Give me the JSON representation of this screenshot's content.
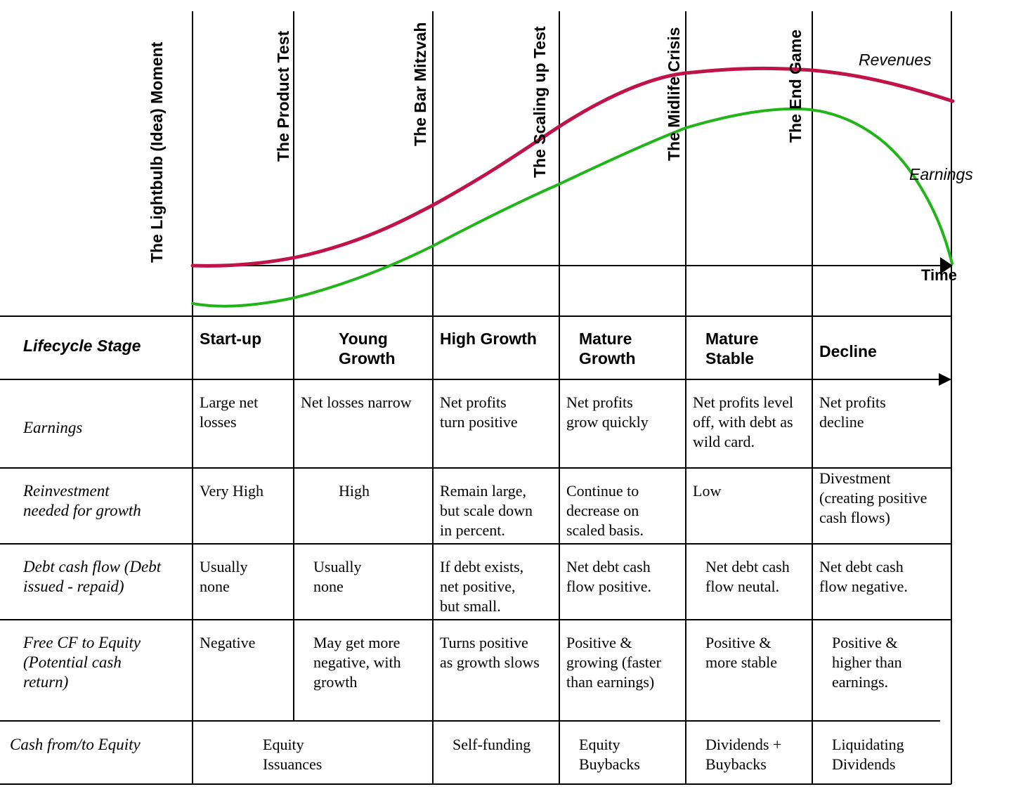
{
  "milestones": [
    "The Lightbulb (Idea) Moment",
    "The Product Test",
    "The Bar Mitzvah",
    "The Scaling up Test",
    "The Midlife Crisis",
    "The End Game"
  ],
  "curves": {
    "revenues": {
      "label": "Revenues",
      "color": "#c0134a"
    },
    "earnings": {
      "label": "Earnings",
      "color": "#22b51a"
    }
  },
  "axis_label": "Time",
  "table": {
    "stage_header": "Lifecycle Stage",
    "stages": [
      [
        "Start-up"
      ],
      [
        "Young",
        "Growth"
      ],
      [
        "High Growth"
      ],
      [
        "Mature",
        "Growth"
      ],
      [
        "Mature",
        "Stable"
      ],
      [
        "Decline"
      ]
    ],
    "rows": [
      {
        "label": [
          "Earnings"
        ],
        "cells": [
          [
            "Large net",
            "losses"
          ],
          [
            "Net losses narrow"
          ],
          [
            "Net profits",
            "turn positive"
          ],
          [
            "Net profits",
            "grow quickly"
          ],
          [
            "Net profits level",
            "off, with debt as",
            "wild card."
          ],
          [
            "Net profits",
            "decline"
          ]
        ]
      },
      {
        "label": [
          "Reinvestment",
          "needed for growth"
        ],
        "cells": [
          [
            "Very High"
          ],
          [
            "High"
          ],
          [
            "Remain large,",
            "but scale down",
            "in percent."
          ],
          [
            "Continue to",
            "decrease on",
            "scaled basis."
          ],
          [
            "Low"
          ],
          [
            "Divestment",
            "(creating positive",
            "cash flows)"
          ]
        ]
      },
      {
        "label": [
          "Debt cash flow (Debt",
          "issued - repaid)"
        ],
        "cells": [
          [
            "Usually",
            "none"
          ],
          [
            "Usually",
            "none"
          ],
          [
            "If debt exists,",
            "net positive,",
            "but small."
          ],
          [
            "Net debt cash",
            "flow positive."
          ],
          [
            "Net debt cash",
            "flow neutal."
          ],
          [
            "Net debt cash",
            "flow negative."
          ]
        ]
      },
      {
        "label": [
          "Free CF to Equity",
          "(Potential cash",
          "return)"
        ],
        "cells": [
          [
            "Negative"
          ],
          [
            "May get more",
            "negative, with",
            "growth"
          ],
          [
            "Turns positive",
            "as growth slows"
          ],
          [
            "Positive &",
            "growing (faster",
            "than earnings)"
          ],
          [
            "Positive &",
            "more stable"
          ],
          [
            "Positive &",
            "higher than",
            "earnings."
          ]
        ]
      }
    ],
    "cash_row": {
      "label": [
        "Cash from/to Equity"
      ],
      "cells": [
        [
          "Equity",
          "Issuances"
        ],
        [
          "Self-funding"
        ],
        [
          "Equity",
          "Buybacks"
        ],
        [
          "Dividends +",
          "Buybacks"
        ],
        [
          "Liquidating",
          "Dividends"
        ]
      ]
    }
  }
}
